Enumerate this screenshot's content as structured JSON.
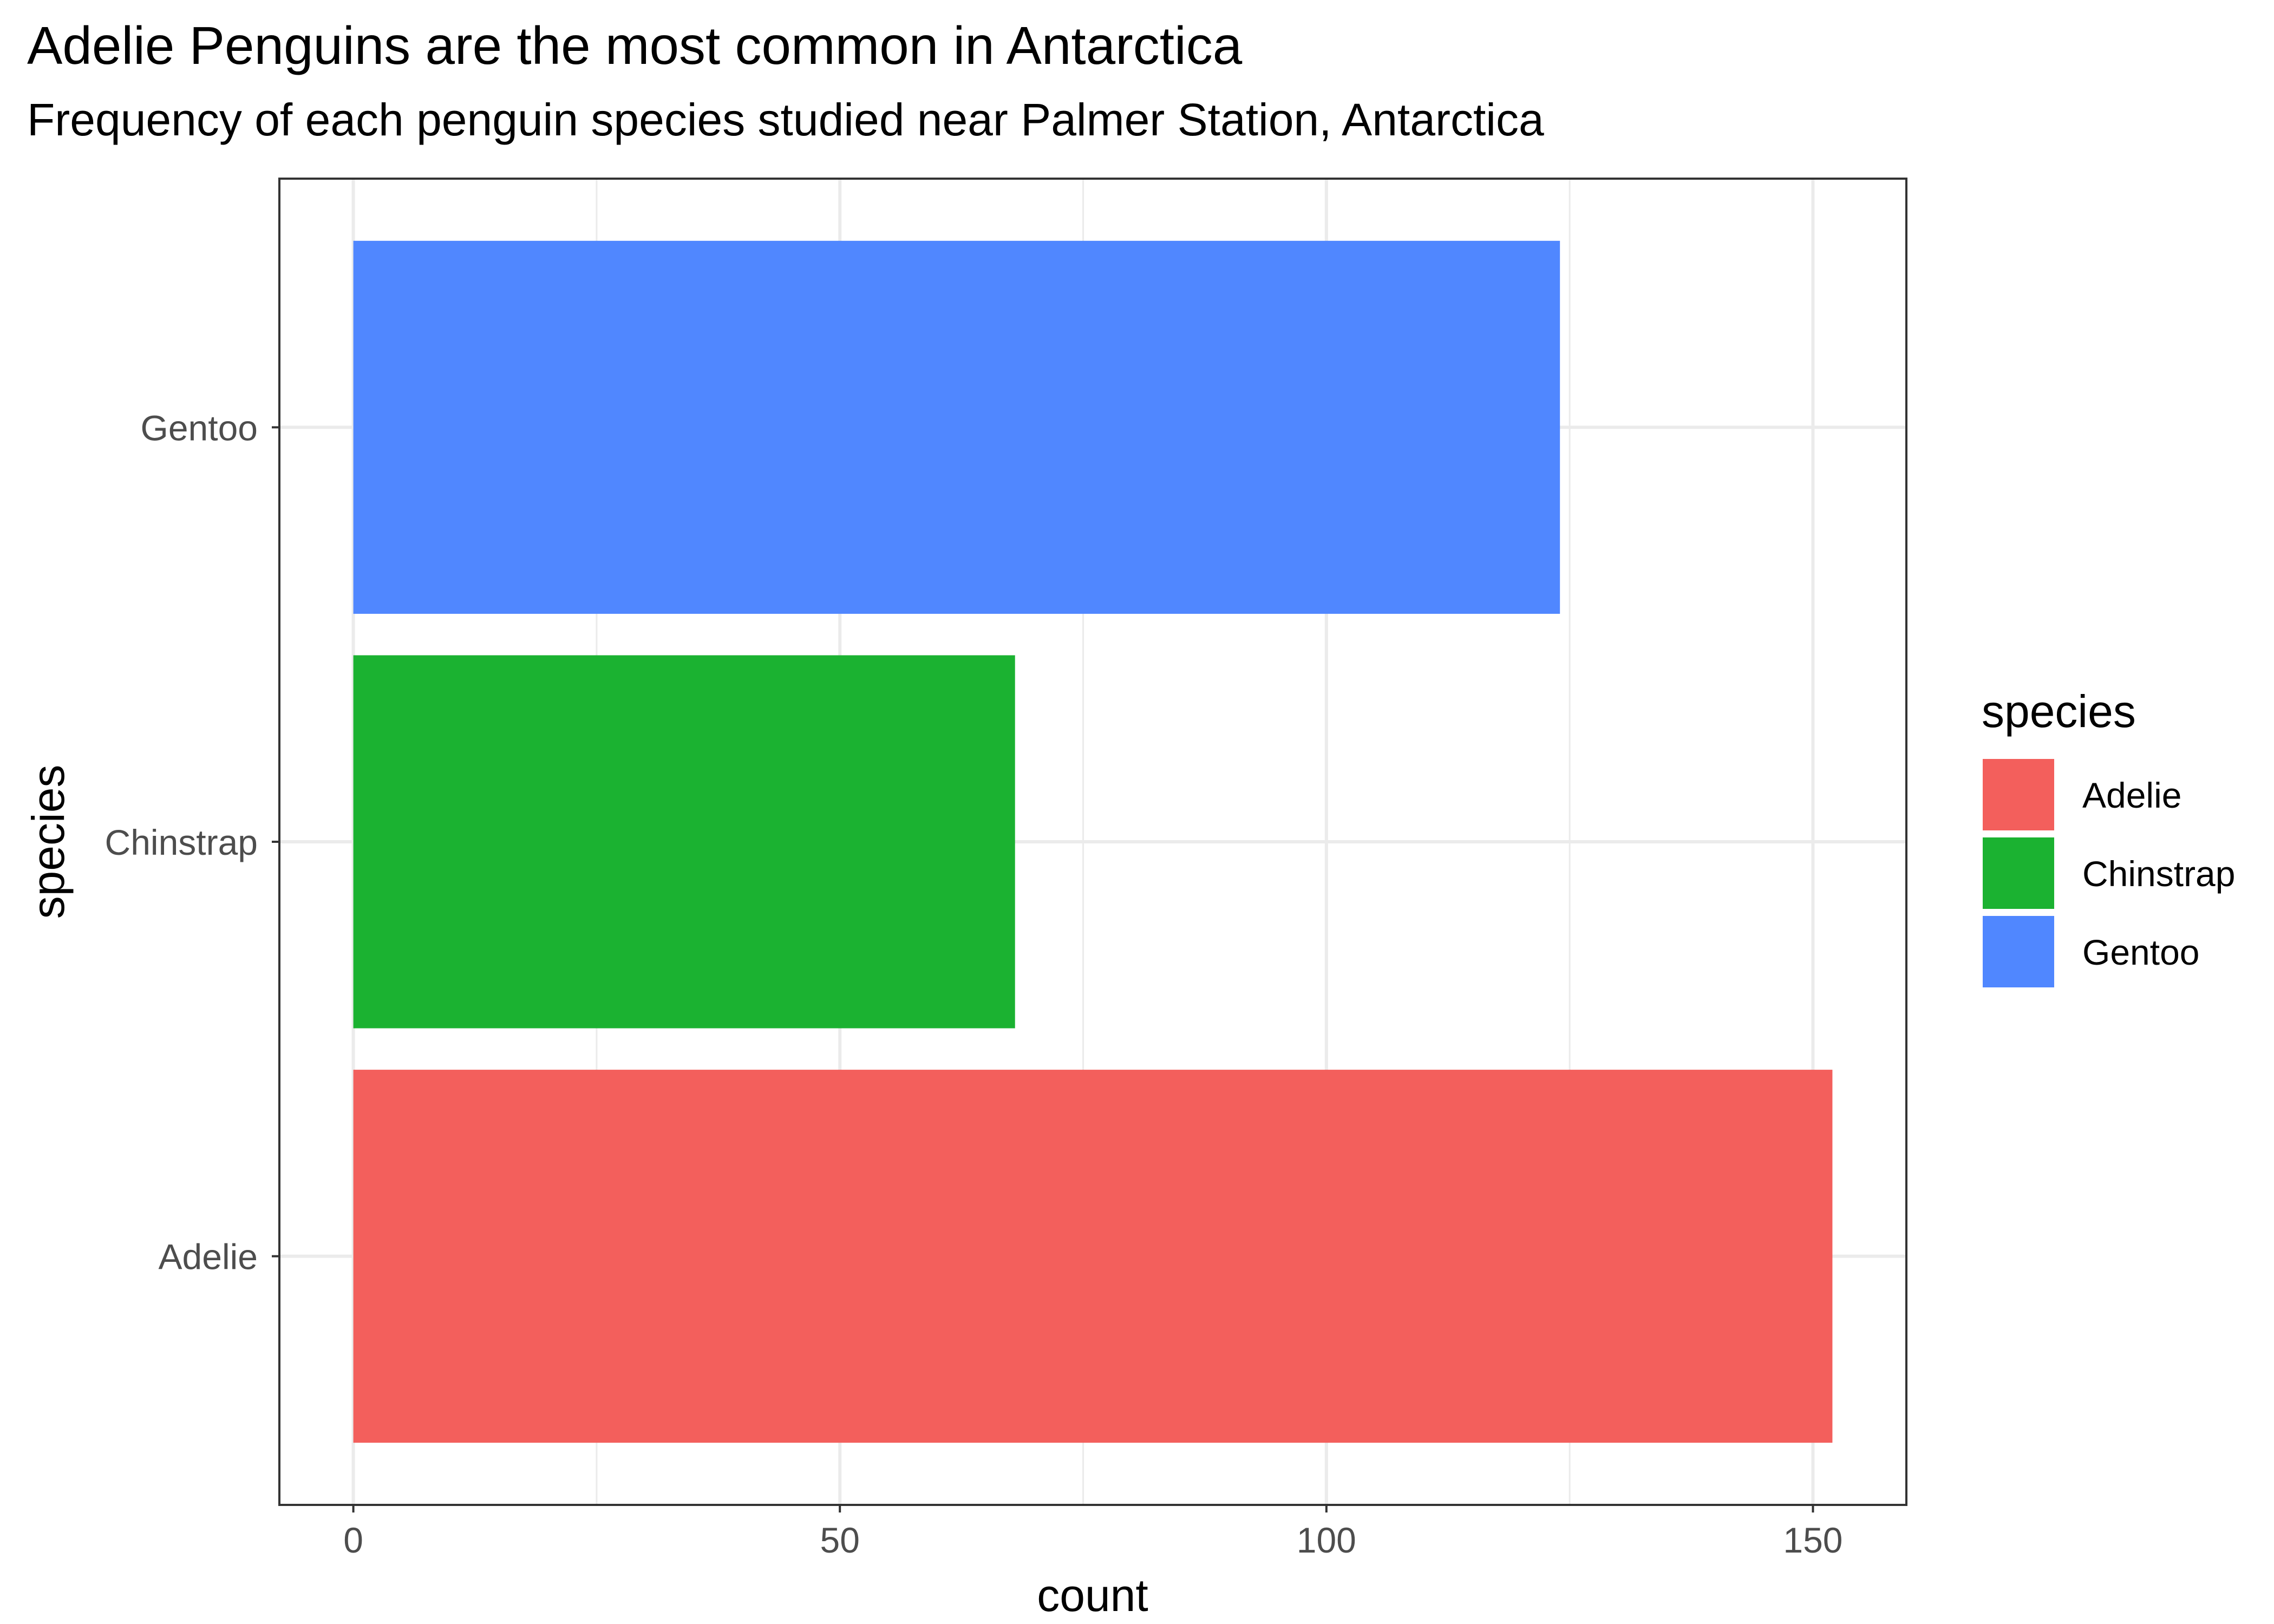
{
  "chart_data": {
    "type": "bar",
    "orientation": "horizontal",
    "title": "Adelie Penguins are the most common in Antarctica",
    "subtitle": "Frequency of each penguin species studied near Palmer Station, Antarctica",
    "xlabel": "count",
    "ylabel": "species",
    "categories": [
      "Adelie",
      "Chinstrap",
      "Gentoo"
    ],
    "values": [
      152,
      68,
      124
    ],
    "colors": [
      "#F35F5C",
      "#1BB231",
      "#5087FF"
    ],
    "xlim": [
      -7.6,
      159.6
    ],
    "xticks": [
      0,
      50,
      100,
      150
    ],
    "xtick_labels": [
      "0",
      "50",
      "100",
      "150"
    ],
    "x_minor_gridlines": [
      25,
      75,
      125
    ],
    "grid": true,
    "legend": {
      "title": "species",
      "position": "right",
      "entries": [
        "Adelie",
        "Chinstrap",
        "Gentoo"
      ]
    },
    "colors_theme": {
      "background": "#FFFFFF",
      "panel_border": "#333333",
      "gridline": "#EBEBEB",
      "tick_text": "#4D4D4D",
      "text": "#000000"
    }
  }
}
